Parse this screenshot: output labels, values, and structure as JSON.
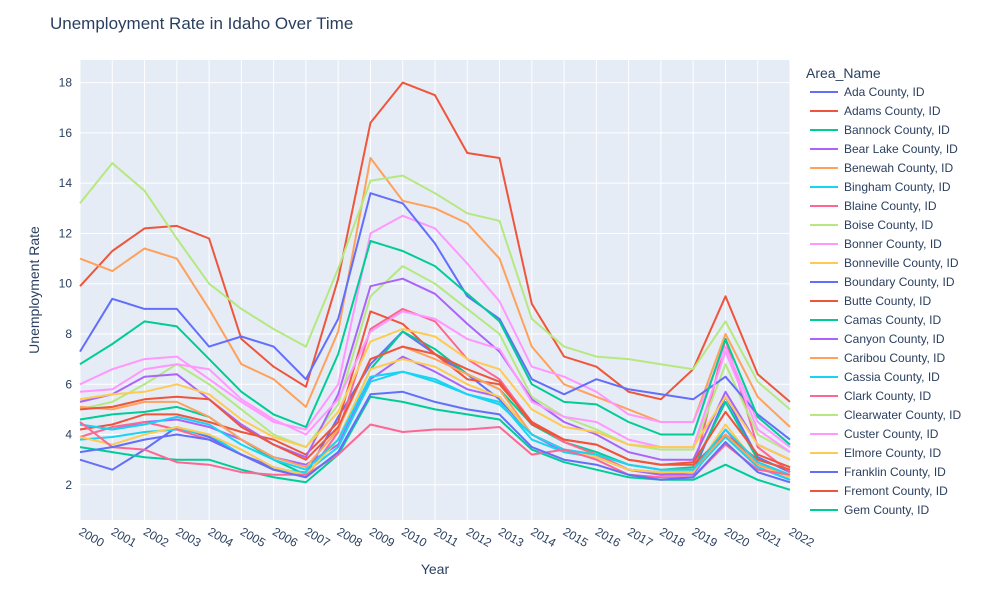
{
  "chart_data": {
    "type": "line",
    "title": "Unemployment Rate in Idaho Over Time",
    "xlabel": "Year",
    "ylabel": "Unemployment Rate",
    "legend_title": "Area_Name",
    "legend_placement": "right",
    "grid": true,
    "x": [
      2000,
      2001,
      2002,
      2003,
      2004,
      2005,
      2006,
      2007,
      2008,
      2009,
      2010,
      2011,
      2012,
      2013,
      2014,
      2015,
      2016,
      2017,
      2018,
      2019,
      2020,
      2021,
      2022
    ],
    "xlim": [
      2000,
      2022
    ],
    "ylim": [
      0.6,
      18.9
    ],
    "yticks": [
      2,
      4,
      6,
      8,
      10,
      12,
      14,
      16,
      18
    ],
    "series": [
      {
        "name": "Ada County, ID",
        "color": "#636efa",
        "values": [
          3.0,
          2.6,
          3.4,
          4.3,
          3.9,
          3.2,
          2.7,
          2.4,
          4.7,
          6.8,
          8.1,
          7.2,
          6.4,
          5.4,
          4.0,
          3.4,
          3.2,
          2.6,
          2.4,
          2.5,
          5.5,
          3.1,
          2.5
        ]
      },
      {
        "name": "Adams County, ID",
        "color": "#EF553B",
        "values": [
          9.9,
          11.3,
          12.2,
          12.3,
          11.8,
          7.8,
          6.7,
          5.9,
          10.2,
          16.4,
          18.0,
          17.5,
          15.2,
          15.0,
          9.2,
          7.1,
          6.7,
          5.7,
          5.4,
          6.6,
          9.5,
          6.4,
          5.3
        ]
      },
      {
        "name": "Bannock County, ID",
        "color": "#00cc96",
        "values": [
          4.6,
          4.8,
          4.9,
          5.1,
          4.7,
          3.8,
          3.0,
          2.4,
          3.8,
          6.6,
          8.1,
          7.4,
          6.4,
          5.8,
          4.4,
          3.7,
          3.3,
          2.8,
          2.6,
          2.7,
          5.3,
          3.0,
          2.6
        ]
      },
      {
        "name": "Bear Lake County, ID",
        "color": "#ab63fa",
        "values": [
          4.4,
          4.2,
          4.5,
          4.6,
          4.3,
          3.8,
          3.1,
          2.8,
          3.6,
          6.2,
          7.1,
          6.5,
          5.8,
          5.5,
          4.0,
          3.3,
          3.1,
          2.6,
          2.4,
          2.4,
          4.2,
          2.7,
          2.2
        ]
      },
      {
        "name": "Benewah County, ID",
        "color": "#FFA15A",
        "values": [
          11.0,
          10.5,
          11.4,
          11.0,
          9.0,
          6.8,
          6.2,
          5.1,
          8.1,
          15.0,
          13.3,
          13.0,
          12.4,
          11.0,
          7.5,
          6.0,
          5.5,
          5.0,
          4.5,
          4.5,
          8.0,
          5.5,
          4.3
        ]
      },
      {
        "name": "Bingham County, ID",
        "color": "#19d3f3",
        "values": [
          3.8,
          3.9,
          4.1,
          4.2,
          4.0,
          3.2,
          2.6,
          2.5,
          3.5,
          6.1,
          6.5,
          6.2,
          5.6,
          5.3,
          3.8,
          3.3,
          3.1,
          2.6,
          2.5,
          2.5,
          3.9,
          2.7,
          2.2
        ]
      },
      {
        "name": "Blaine County, ID",
        "color": "#FF6692",
        "values": [
          3.9,
          4.3,
          4.5,
          4.2,
          3.8,
          3.2,
          2.6,
          2.3,
          4.1,
          8.2,
          9.0,
          8.5,
          7.0,
          6.2,
          4.5,
          3.7,
          3.2,
          2.6,
          2.5,
          2.5,
          7.8,
          3.5,
          2.5
        ]
      },
      {
        "name": "Boise County, ID",
        "color": "#B6E880",
        "values": [
          5.0,
          5.3,
          6.0,
          6.8,
          6.0,
          5.0,
          4.0,
          3.5,
          5.2,
          9.5,
          10.7,
          10.0,
          9.0,
          8.0,
          5.5,
          4.7,
          4.2,
          3.6,
          3.4,
          3.4,
          6.8,
          4.0,
          3.3
        ]
      },
      {
        "name": "Bonner County, ID",
        "color": "#FF97FF",
        "values": [
          6.0,
          6.6,
          7.0,
          7.1,
          6.2,
          5.3,
          4.5,
          4.2,
          6.0,
          12.0,
          12.7,
          12.2,
          10.8,
          9.3,
          6.7,
          6.3,
          5.7,
          4.8,
          4.5,
          4.5,
          7.5,
          4.5,
          3.5
        ]
      },
      {
        "name": "Bonneville County, ID",
        "color": "#FECB52",
        "values": [
          3.9,
          3.6,
          4.0,
          4.3,
          4.0,
          3.4,
          2.7,
          2.4,
          3.8,
          6.6,
          7.0,
          6.7,
          6.0,
          5.5,
          4.0,
          3.4,
          3.1,
          2.6,
          2.5,
          2.5,
          4.4,
          2.8,
          2.3
        ]
      },
      {
        "name": "Boundary County, ID",
        "color": "#636efa",
        "values": [
          7.3,
          9.4,
          9.0,
          9.0,
          7.5,
          7.9,
          7.5,
          6.2,
          8.6,
          13.6,
          13.2,
          11.6,
          9.5,
          8.6,
          6.2,
          5.6,
          6.2,
          5.8,
          5.6,
          5.4,
          6.3,
          4.8,
          3.8
        ]
      },
      {
        "name": "Butte County, ID",
        "color": "#EF553B",
        "values": [
          4.2,
          4.4,
          4.8,
          4.8,
          4.5,
          4.1,
          3.8,
          3.2,
          4.5,
          8.9,
          8.4,
          7.2,
          6.2,
          6.0,
          4.5,
          3.8,
          3.6,
          3.0,
          2.8,
          2.8,
          4.0,
          3.0,
          2.6
        ]
      },
      {
        "name": "Camas County, ID",
        "color": "#00cc96",
        "values": [
          3.5,
          3.3,
          3.1,
          3.0,
          3.0,
          2.6,
          2.3,
          2.1,
          3.2,
          5.5,
          5.3,
          5.0,
          4.8,
          4.6,
          3.4,
          2.9,
          2.6,
          2.3,
          2.2,
          2.2,
          2.8,
          2.2,
          1.8
        ]
      },
      {
        "name": "Canyon County, ID",
        "color": "#ab63fa",
        "values": [
          5.3,
          5.6,
          6.3,
          6.4,
          5.4,
          4.4,
          3.6,
          3.1,
          5.6,
          9.9,
          10.2,
          9.6,
          8.4,
          7.3,
          5.4,
          4.5,
          4.0,
          3.3,
          3.0,
          3.0,
          5.7,
          3.6,
          3.0
        ]
      },
      {
        "name": "Caribou County, ID",
        "color": "#FFA15A",
        "values": [
          5.1,
          5.0,
          5.3,
          5.3,
          4.7,
          3.8,
          3.1,
          2.7,
          4.2,
          7.0,
          7.5,
          7.0,
          6.4,
          5.8,
          4.0,
          3.4,
          3.2,
          2.8,
          2.6,
          2.6,
          4.0,
          2.8,
          2.4
        ]
      },
      {
        "name": "Cassia County, ID",
        "color": "#19d3f3",
        "values": [
          4.4,
          4.2,
          4.4,
          4.7,
          4.4,
          3.6,
          3.0,
          2.6,
          3.8,
          6.3,
          6.5,
          6.1,
          5.6,
          5.2,
          4.0,
          3.4,
          3.2,
          2.8,
          2.6,
          2.6,
          4.2,
          2.9,
          2.4
        ]
      },
      {
        "name": "Clark County, ID",
        "color": "#FF6692",
        "values": [
          4.5,
          3.5,
          3.4,
          2.9,
          2.8,
          2.5,
          2.4,
          2.4,
          3.2,
          4.4,
          4.1,
          4.2,
          4.2,
          4.3,
          3.2,
          3.4,
          3.0,
          2.4,
          2.3,
          2.3,
          3.6,
          2.6,
          2.4
        ]
      },
      {
        "name": "Clearwater County, ID",
        "color": "#B6E880",
        "values": [
          13.2,
          14.8,
          13.7,
          11.8,
          10.0,
          9.0,
          8.2,
          7.5,
          10.6,
          14.1,
          14.3,
          13.6,
          12.8,
          12.5,
          8.6,
          7.5,
          7.1,
          7.0,
          6.8,
          6.6,
          8.5,
          6.1,
          5.0
        ]
      },
      {
        "name": "Custer County, ID",
        "color": "#FF97FF",
        "values": [
          5.7,
          5.8,
          6.6,
          6.8,
          6.6,
          5.4,
          4.6,
          4.0,
          5.4,
          8.1,
          8.9,
          8.6,
          7.8,
          7.4,
          5.3,
          4.7,
          4.5,
          3.8,
          3.5,
          3.5,
          7.3,
          4.2,
          3.3
        ]
      },
      {
        "name": "Elmore County, ID",
        "color": "#FECB52",
        "values": [
          5.4,
          5.6,
          5.7,
          6.0,
          5.6,
          4.6,
          3.9,
          3.5,
          4.9,
          7.7,
          8.2,
          7.9,
          7.0,
          6.6,
          5.0,
          4.3,
          4.1,
          3.6,
          3.5,
          3.5,
          5.5,
          3.6,
          3.0
        ]
      },
      {
        "name": "Franklin County, ID",
        "color": "#636efa",
        "values": [
          3.3,
          3.5,
          3.8,
          4.0,
          3.8,
          3.2,
          2.6,
          2.3,
          3.3,
          5.6,
          5.7,
          5.3,
          5.0,
          4.8,
          3.5,
          3.0,
          2.8,
          2.4,
          2.2,
          2.3,
          3.7,
          2.5,
          2.1
        ]
      },
      {
        "name": "Fremont County, ID",
        "color": "#EF553B",
        "values": [
          5.0,
          5.1,
          5.4,
          5.5,
          5.4,
          4.3,
          3.6,
          3.0,
          4.3,
          7.0,
          7.5,
          7.2,
          6.6,
          6.1,
          4.4,
          3.8,
          3.6,
          3.0,
          2.8,
          2.9,
          4.9,
          3.2,
          2.7
        ]
      },
      {
        "name": "Gem County, ID",
        "color": "#00cc96",
        "values": [
          6.8,
          7.6,
          8.5,
          8.3,
          7.0,
          5.7,
          4.8,
          4.3,
          7.2,
          11.7,
          11.3,
          10.7,
          9.6,
          8.5,
          6.0,
          5.3,
          5.2,
          4.5,
          4.0,
          4.0,
          7.8,
          4.7,
          3.6
        ]
      }
    ]
  }
}
